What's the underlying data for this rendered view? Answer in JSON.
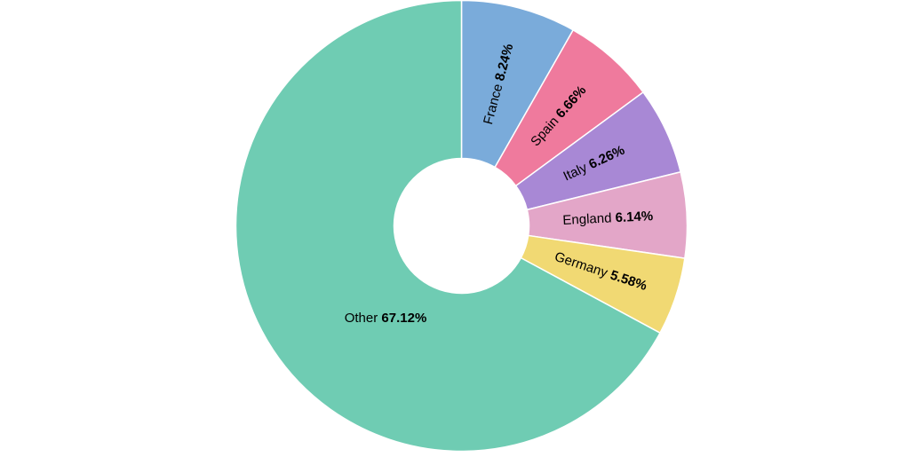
{
  "chart_data": {
    "type": "pie",
    "variant": "donut",
    "title": "",
    "slices": [
      {
        "label": "France",
        "value": 8.24,
        "display": "8.24%",
        "color": "#7aabda"
      },
      {
        "label": "Spain",
        "value": 6.66,
        "display": "6.66%",
        "color": "#ef7a9d"
      },
      {
        "label": "Italy",
        "value": 6.26,
        "display": "6.26%",
        "color": "#a888d5"
      },
      {
        "label": "England",
        "value": 6.14,
        "display": "6.14%",
        "color": "#e3a6c8"
      },
      {
        "label": "Germany",
        "value": 5.58,
        "display": "5.58%",
        "color": "#f1d973"
      },
      {
        "label": "Other",
        "value": 67.12,
        "display": "67.12%",
        "color": "#6fccb3"
      }
    ],
    "legend": "none",
    "start_angle": "12 o'clock",
    "direction": "clockwise",
    "slice_border_color": "#ffffff"
  }
}
